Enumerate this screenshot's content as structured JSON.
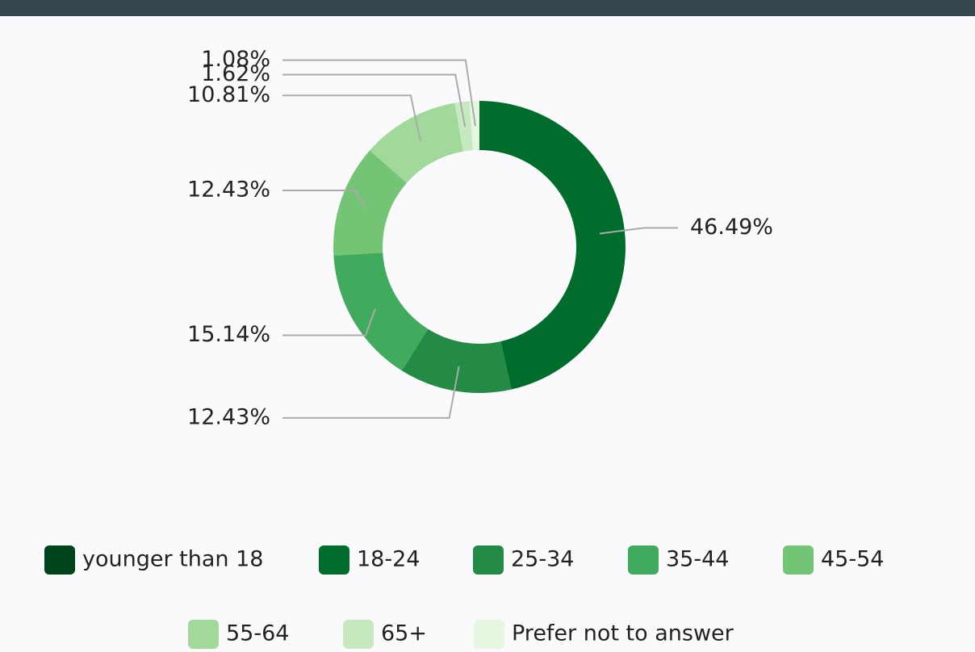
{
  "chart_data": {
    "type": "donut",
    "categories": [
      "younger than 18",
      "18-24",
      "25-34",
      "35-44",
      "45-54",
      "55-64",
      "65+",
      "Prefer not to answer"
    ],
    "values": [
      0,
      46.49,
      12.43,
      15.14,
      12.43,
      10.81,
      1.62,
      1.08
    ],
    "value_labels": [
      null,
      "46.49%",
      "12.43%",
      "15.14%",
      "12.43%",
      "10.81%",
      "1.62%",
      "1.08%"
    ],
    "colors": [
      "#00441b",
      "#006d2c",
      "#238b45",
      "#41ab5d",
      "#74c476",
      "#a1d99b",
      "#c7e9c0",
      "#e5f5e0"
    ],
    "legend": "bottom"
  }
}
